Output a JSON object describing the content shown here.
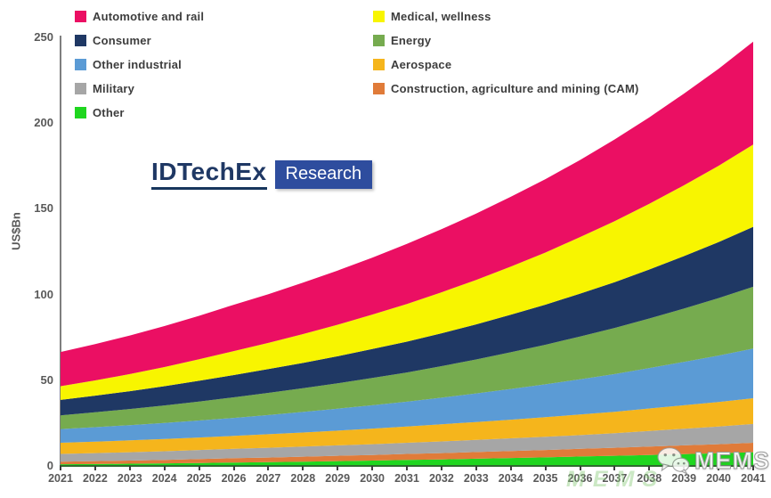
{
  "logo": {
    "brand": "IDTechEx",
    "badge": "Research",
    "brand_color": "#1F3864",
    "badge_color": "#2E4D9E"
  },
  "watermark": {
    "label": "MEMS",
    "icon": "wechat-icon",
    "faint_text": "MEMS"
  },
  "chart_data": {
    "type": "area",
    "stacked": true,
    "title": "",
    "xlabel": "",
    "ylabel": "US$Bn",
    "ylim": [
      0,
      250
    ],
    "yticks": [
      0,
      50,
      100,
      150,
      200,
      250
    ],
    "grid": false,
    "legend_position": "top",
    "x": [
      2021,
      2022,
      2023,
      2024,
      2025,
      2026,
      2027,
      2028,
      2029,
      2030,
      2031,
      2032,
      2033,
      2034,
      2035,
      2036,
      2037,
      2038,
      2039,
      2040,
      2041
    ],
    "series_stacking_order": "bottom_to_top",
    "series": [
      {
        "name": "Other",
        "color": "#1FD61F",
        "values": [
          1.0,
          1.1,
          1.3,
          1.5,
          1.7,
          2.0,
          2.2,
          2.5,
          2.8,
          3.1,
          3.5,
          3.8,
          4.2,
          4.6,
          5.0,
          5.5,
          5.9,
          6.4,
          6.9,
          7.4,
          8.0
        ]
      },
      {
        "name": "Construction, agriculture and mining (CAM)",
        "color": "#E07B39",
        "values": [
          1.5,
          1.7,
          1.8,
          2.0,
          2.3,
          2.5,
          2.7,
          2.9,
          3.1,
          3.3,
          3.5,
          3.7,
          3.9,
          4.1,
          4.3,
          4.5,
          4.7,
          4.9,
          5.1,
          5.3,
          5.5
        ]
      },
      {
        "name": "Military",
        "color": "#A6A6A6",
        "values": [
          4.5,
          4.7,
          4.9,
          5.1,
          5.3,
          5.5,
          5.7,
          5.9,
          6.1,
          6.3,
          6.5,
          6.8,
          7.1,
          7.4,
          7.7,
          8.0,
          8.5,
          9.1,
          9.7,
          10.3,
          11.0
        ]
      },
      {
        "name": "Aerospace",
        "color": "#F5B51C",
        "values": [
          6.5,
          6.7,
          6.9,
          7.1,
          7.3,
          7.5,
          7.9,
          8.2,
          8.6,
          9.1,
          9.5,
          10.0,
          10.4,
          10.9,
          11.5,
          12.0,
          12.5,
          13.1,
          13.7,
          14.3,
          15.0
        ]
      },
      {
        "name": "Other industrial",
        "color": "#5B9BD5",
        "values": [
          8.0,
          8.4,
          8.9,
          9.4,
          9.9,
          10.5,
          11.2,
          12.0,
          12.8,
          13.6,
          14.5,
          15.5,
          16.7,
          17.9,
          19.1,
          20.5,
          22.0,
          23.6,
          25.3,
          27.1,
          29.0
        ]
      },
      {
        "name": "Energy",
        "color": "#76AB4F",
        "values": [
          8.0,
          8.7,
          9.4,
          10.2,
          11.1,
          12.0,
          12.9,
          13.8,
          14.8,
          15.9,
          17.0,
          18.4,
          19.8,
          21.4,
          23.1,
          25.0,
          26.9,
          28.9,
          31.1,
          33.5,
          36.0
        ]
      },
      {
        "name": "Consumer",
        "color": "#1F3864",
        "values": [
          9.0,
          9.7,
          10.4,
          11.2,
          12.1,
          13.0,
          13.9,
          14.8,
          15.8,
          16.9,
          18.0,
          19.2,
          20.5,
          21.9,
          23.4,
          25.0,
          26.7,
          28.6,
          30.6,
          32.7,
          35.0
        ]
      },
      {
        "name": "Medical, wellness",
        "color": "#F8F500",
        "values": [
          8.0,
          8.9,
          10.0,
          11.2,
          12.5,
          14.0,
          15.3,
          16.8,
          18.4,
          20.1,
          22.0,
          23.9,
          25.9,
          28.1,
          30.4,
          33.0,
          35.6,
          38.3,
          41.3,
          44.5,
          48.0
        ]
      },
      {
        "name": "Automotive and rail",
        "color": "#EB0F63",
        "values": [
          20.0,
          21.2,
          22.5,
          23.9,
          25.4,
          27.0,
          28.4,
          30.0,
          31.6,
          33.2,
          35.0,
          36.8,
          38.7,
          40.7,
          42.8,
          45.0,
          47.7,
          50.5,
          53.5,
          56.6,
          60.0
        ]
      }
    ],
    "legend_columns": [
      [
        "Automotive and rail",
        "Consumer",
        "Other industrial",
        "Military",
        "Other"
      ],
      [
        "Medical, wellness",
        "Energy",
        "Aerospace",
        "Construction, agriculture and mining (CAM)"
      ]
    ]
  }
}
